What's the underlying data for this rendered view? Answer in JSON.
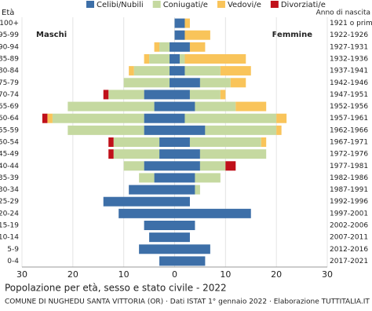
{
  "chart_data": {
    "type": "pyramid",
    "title": "Popolazione per età, sesso e stato civile - 2022",
    "footer": "COMUNE DI NUGHEDU SANTA VITTORIA (OR) · Dati ISTAT 1° gennaio 2022 · Elaborazione TUTTITALIA.IT",
    "left_axis_title": "Età",
    "right_axis_title": "Anno di nascita",
    "left_label": "Maschi",
    "right_label": "Femmine",
    "categories": [
      "100+",
      "95-99",
      "90-94",
      "85-89",
      "80-84",
      "75-79",
      "70-74",
      "65-69",
      "60-64",
      "55-59",
      "50-54",
      "45-49",
      "40-44",
      "35-39",
      "30-34",
      "25-29",
      "20-24",
      "15-19",
      "10-14",
      "5-9",
      "0-4"
    ],
    "years": [
      "1921 o prima",
      "1922-1926",
      "1927-1931",
      "1932-1936",
      "1937-1941",
      "1942-1946",
      "1947-1951",
      "1952-1956",
      "1957-1961",
      "1962-1966",
      "1967-1971",
      "1972-1976",
      "1977-1981",
      "1982-1986",
      "1987-1991",
      "1992-1996",
      "1997-2001",
      "2002-2006",
      "2007-2011",
      "2012-2016",
      "2017-2021"
    ],
    "series": [
      {
        "name": "Celibi/Nubili",
        "color": "#3d6fa8",
        "male": [
          0,
          0,
          1,
          1,
          1,
          1,
          6,
          4,
          6,
          6,
          3,
          3,
          6,
          4,
          9,
          14,
          11,
          6,
          5,
          7,
          3
        ],
        "female": [
          2,
          2,
          3,
          1,
          2,
          5,
          3,
          4,
          2,
          6,
          3,
          5,
          5,
          4,
          4,
          3,
          15,
          4,
          3,
          7,
          6
        ]
      },
      {
        "name": "Coniugati/e",
        "color": "#c5d9a0",
        "male": [
          0,
          0,
          2,
          4,
          7,
          9,
          7,
          17,
          18,
          15,
          9,
          9,
          4,
          3,
          0,
          0,
          0,
          0,
          0,
          0,
          0
        ],
        "female": [
          0,
          0,
          0,
          1,
          7,
          6,
          6,
          8,
          18,
          14,
          14,
          13,
          5,
          5,
          1,
          0,
          0,
          0,
          0,
          0,
          0
        ]
      },
      {
        "name": "Vedovi/e",
        "color": "#f9c45a",
        "male": [
          0,
          0,
          1,
          1,
          1,
          0,
          0,
          0,
          1,
          0,
          0,
          0,
          0,
          0,
          0,
          0,
          0,
          0,
          0,
          0,
          0
        ],
        "female": [
          1,
          5,
          3,
          12,
          6,
          3,
          1,
          6,
          2,
          1,
          1,
          0,
          0,
          0,
          0,
          0,
          0,
          0,
          0,
          0,
          0
        ]
      },
      {
        "name": "Divorziati/e",
        "color": "#c0101a",
        "male": [
          0,
          0,
          0,
          0,
          0,
          0,
          1,
          0,
          1,
          0,
          1,
          1,
          0,
          0,
          0,
          0,
          0,
          0,
          0,
          0,
          0
        ],
        "female": [
          0,
          0,
          0,
          0,
          0,
          0,
          0,
          0,
          0,
          0,
          0,
          0,
          2,
          0,
          0,
          0,
          0,
          0,
          0,
          0,
          0
        ]
      }
    ],
    "xlim": [
      -30,
      30
    ],
    "xticks": [
      {
        "value": -30,
        "label": "30"
      },
      {
        "value": -20,
        "label": "20"
      },
      {
        "value": -10,
        "label": "10"
      },
      0,
      10,
      20,
      30
    ],
    "grid": true
  }
}
